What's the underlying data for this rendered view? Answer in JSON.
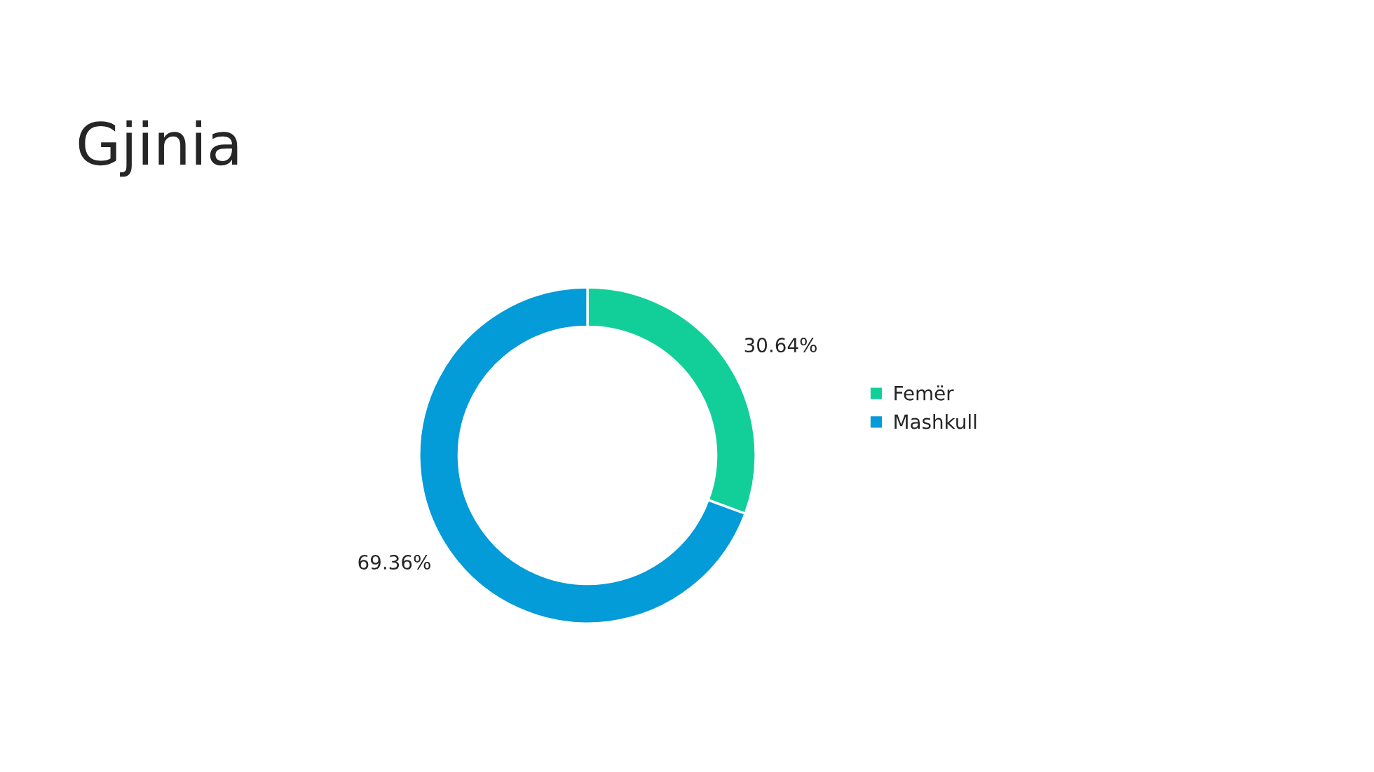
{
  "chart_data": {
    "type": "donut",
    "title": "Gjinia",
    "categories": [
      "Femër",
      "Mashkull"
    ],
    "values": [
      30.64,
      69.36
    ],
    "colors": [
      "#12cf9a",
      "#039bd8"
    ],
    "value_labels": [
      "30.64%",
      "69.36%"
    ],
    "legend": "right"
  }
}
